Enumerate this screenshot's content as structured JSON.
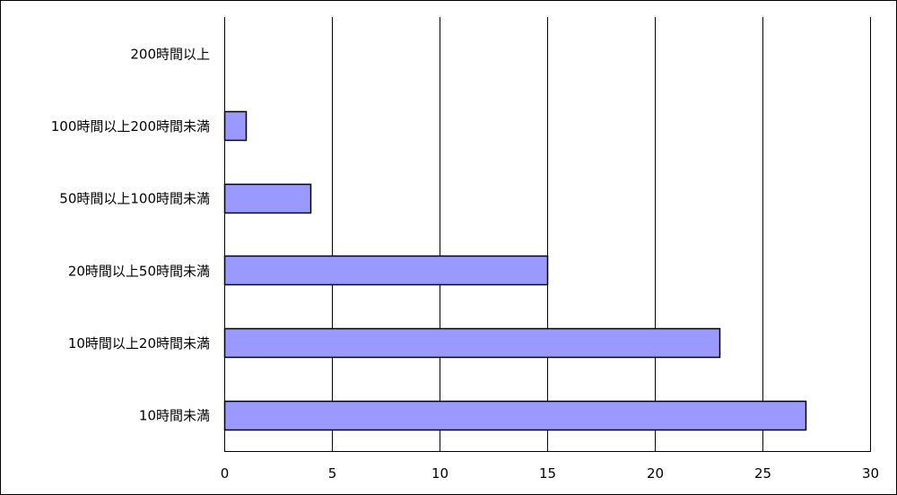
{
  "chart_data": {
    "type": "bar",
    "orientation": "horizontal",
    "categories": [
      "200時間以上",
      "100時間以上200時間未満",
      "50時間以上100時間未満",
      "20時間以上50時間未満",
      "10時間以上20時間未満",
      "10時間未満"
    ],
    "values": [
      0,
      1,
      4,
      15,
      23,
      27
    ],
    "xlim": [
      0,
      30
    ],
    "xticks": [
      "0",
      "5",
      "10",
      "15",
      "20",
      "25",
      "30"
    ],
    "grid": "vertical",
    "legend": "none",
    "bar_color": "#9999ff",
    "bar_edge_color": "#000000"
  }
}
